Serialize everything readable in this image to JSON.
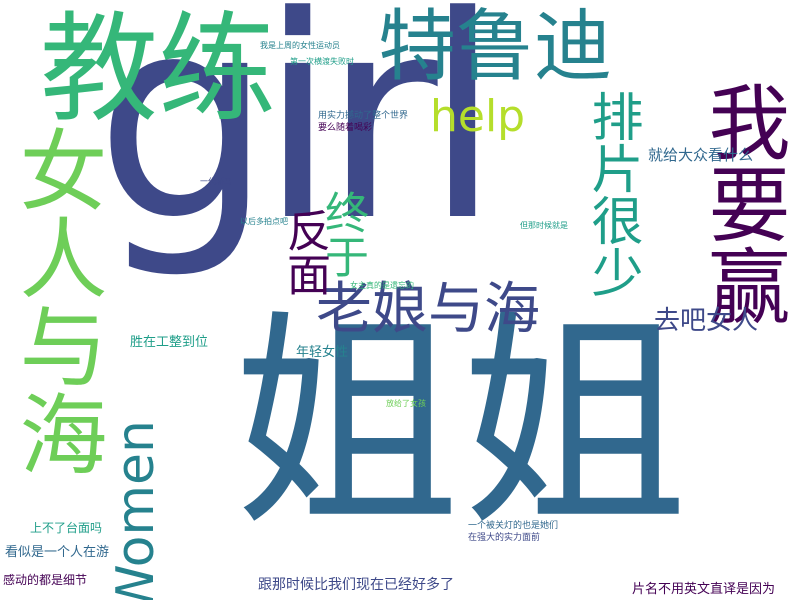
{
  "palette": {
    "purple": "#440154",
    "indigo": "#3e4989",
    "blue": "#31688e",
    "teal": "#26828e",
    "seagreen": "#1f9e89",
    "green": "#35b779",
    "lime": "#6ece58",
    "yellow": "#b5de2b",
    "gold": "#fde725"
  },
  "words": [
    "girl",
    "姐姐",
    "教练",
    "女人与海",
    "特鲁迪",
    "我要赢",
    "排片很少",
    "老娘与海",
    "Women",
    "反面",
    "终于",
    "help",
    "去吧女人",
    "就给大众看什么",
    "胜在工整到位",
    "年轻女性",
    "跟那时候比我们现在已经好多了",
    "片名不用英文直译是因为",
    "感动的都是细节",
    "看似是一个人在游",
    "上不了台面吗",
    "一个被关灯的也是她们",
    "在强大的实力面前",
    "我是上周的女性运动员",
    "第一次横渡失败时",
    "女主真的是遗忘的",
    "用实力撼动了整个世界",
    "要么随着喝彩",
    "以后多拍点吧",
    "一代骄马",
    "放给了女孩",
    "但那时候就是"
  ]
}
